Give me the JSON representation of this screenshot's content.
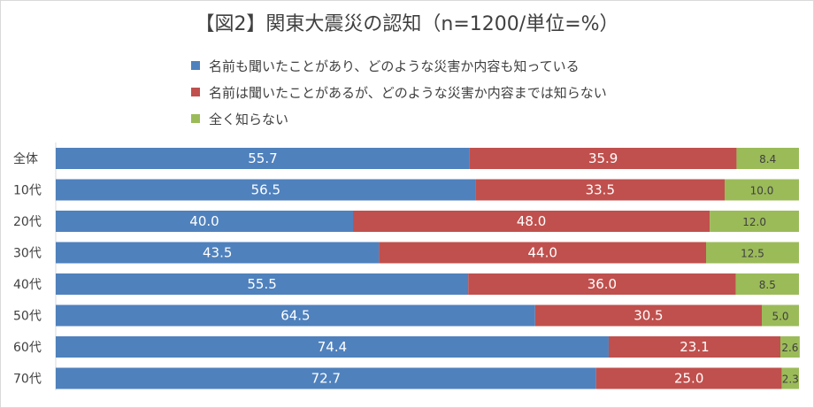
{
  "chart_data": {
    "type": "bar",
    "orientation": "horizontal",
    "stacked": true,
    "title": "【図2】関東大震災の認知（n=1200/単位=%）",
    "categories": [
      "全体",
      "10代",
      "20代",
      "30代",
      "40代",
      "50代",
      "60代",
      "70代"
    ],
    "series": [
      {
        "name": "名前も聞いたことがあり、どのような災害か内容も知っている",
        "color": "#4f81bd",
        "values": [
          55.7,
          56.5,
          40.0,
          43.5,
          55.5,
          64.5,
          74.4,
          72.7
        ]
      },
      {
        "name": "名前は聞いたことがあるが、どのような災害か内容までは知らない",
        "color": "#c0504d",
        "values": [
          35.9,
          33.5,
          48.0,
          44.0,
          36.0,
          30.5,
          23.1,
          25.0
        ]
      },
      {
        "name": "全く知らない",
        "color": "#9bbb59",
        "values": [
          8.4,
          10.0,
          12.0,
          12.5,
          8.5,
          5.0,
          2.6,
          2.3
        ]
      }
    ],
    "xlim": [
      0,
      100
    ],
    "legend_position": "top",
    "grid": false
  }
}
